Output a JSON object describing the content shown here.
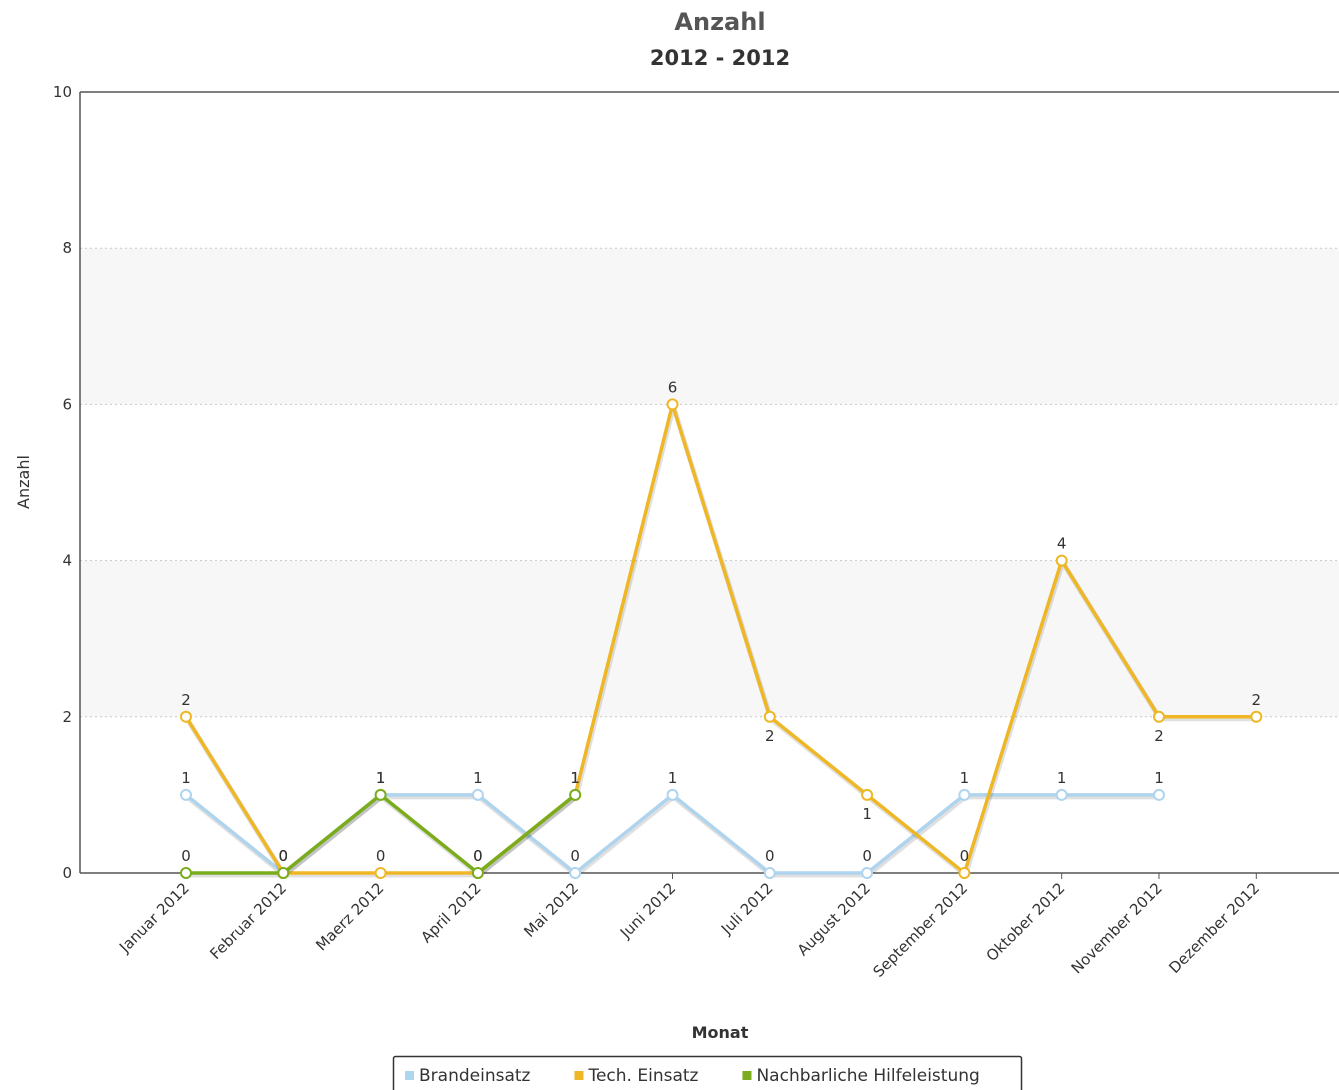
{
  "chart_data": {
    "type": "line",
    "title": "Anzahl",
    "subtitle": "2012 - 2012",
    "xlabel": "Monat",
    "ylabel": "Anzahl",
    "ylim": [
      0,
      10
    ],
    "yticks": [
      "0",
      "2",
      "4",
      "6",
      "8",
      "10"
    ],
    "grid": true,
    "legend_position": "bottom",
    "categories": [
      "Januar 2012",
      "Februar 2012",
      "Maerz 2012",
      "April 2012",
      "Mai 2012",
      "Juni 2012",
      "Juli 2012",
      "August 2012",
      "September 2012",
      "Oktober 2012",
      "November 2012",
      "Dezember 2012"
    ],
    "series": [
      {
        "name": "Brandeinsatz",
        "color": "#aed4ee",
        "values": [
          1,
          0,
          1,
          1,
          0,
          1,
          0,
          0,
          1,
          1,
          1,
          null
        ]
      },
      {
        "name": "Tech. Einsatz",
        "color": "#efb726",
        "values": [
          2,
          0,
          0,
          0,
          1,
          6,
          2,
          1,
          0,
          4,
          2,
          2
        ]
      },
      {
        "name": "Nachbarliche Hilfeleistung",
        "color": "#7aac1c",
        "values": [
          0,
          0,
          1,
          0,
          1,
          null,
          null,
          null,
          null,
          null,
          null,
          null
        ]
      }
    ]
  }
}
